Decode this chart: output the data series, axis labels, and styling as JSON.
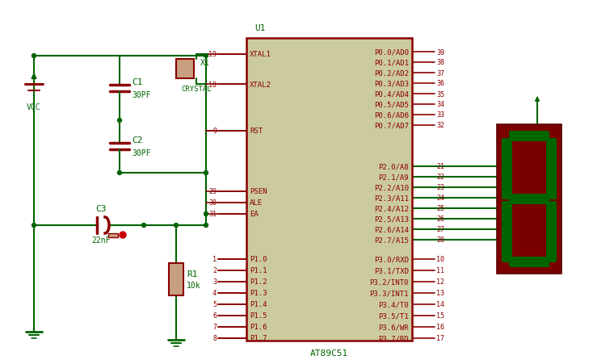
{
  "bg_color": "#ffffff",
  "wire_color": "#006400",
  "comp_color": "#8B0000",
  "ic_fill": "#cccba0",
  "ic_border": "#8B0000",
  "seg_bg": "#7a0000",
  "seg_on": "#006400",
  "pin_color": "#8B0000",
  "text_color": "#006400",
  "figsize": [
    7.6,
    4.52
  ],
  "dpi": 100,
  "ic_sublabel": "AT89C51",
  "left_pins": [
    "XTAL1",
    "XTAL2",
    "RST",
    "PSEN",
    "ALE",
    "EA",
    "P1.0",
    "P1.1",
    "P1.2",
    "P1.3",
    "P1.4",
    "P1.5",
    "P1.6",
    "P1.7"
  ],
  "left_nums": [
    "19",
    "18",
    "9",
    "29",
    "30",
    "31",
    "1",
    "2",
    "3",
    "4",
    "5",
    "6",
    "7",
    "8"
  ],
  "right_p0": [
    "P0.0/AD0",
    "P0.1/AD1",
    "P0.2/AD2",
    "P0.3/AD3",
    "P0.4/AD4",
    "P0.5/AD5",
    "P0.6/AD6",
    "P0.7/AD7"
  ],
  "right_p0_nums": [
    "39",
    "38",
    "37",
    "36",
    "35",
    "34",
    "33",
    "32"
  ],
  "right_p2": [
    "P2.0/A8",
    "P2.1/A9",
    "P2.2/A10",
    "P2.3/A11",
    "P2.4/A12",
    "P2.5/A13",
    "P2.6/A14",
    "P2.7/A15"
  ],
  "right_p2_nums": [
    "21",
    "22",
    "23",
    "24",
    "25",
    "26",
    "27",
    "28"
  ],
  "right_p3": [
    "P3.0/RXD",
    "P3.1/TXD",
    "P3.2/INT0",
    "P3.3/INT1",
    "P3.4/T0",
    "P3.5/T1",
    "P3.6/WR",
    "P3.7/RD"
  ],
  "right_p3_nums": [
    "10",
    "11",
    "12",
    "13",
    "14",
    "15",
    "16",
    "17"
  ],
  "overline_left": [
    "PSEN",
    "ALE",
    "EA"
  ],
  "overline_right_p3": [
    "P3.2/INT0",
    "P3.3/INT1",
    "P3.6/WR",
    "P3.7/RD"
  ]
}
